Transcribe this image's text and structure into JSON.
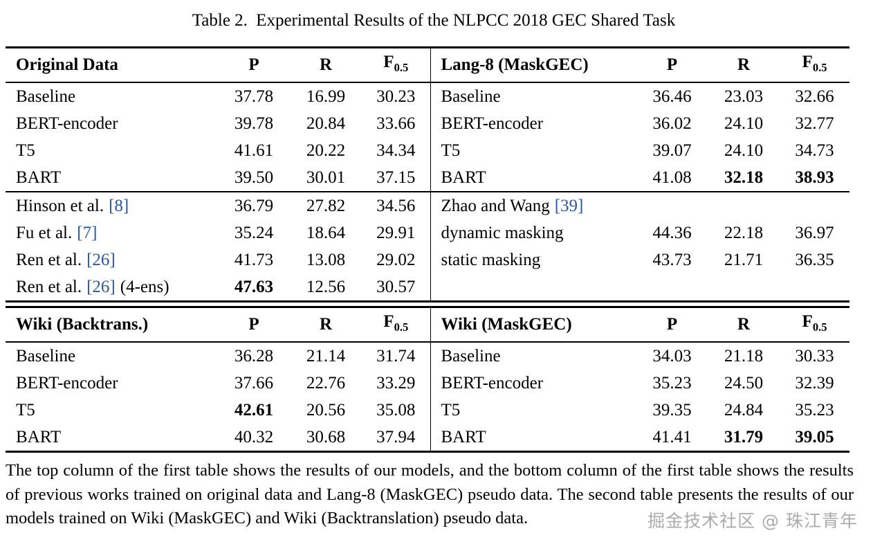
{
  "page": {
    "title_label": "Table 2.",
    "title_text": "Experimental Results of the NLPCC 2018 GEC Shared Task",
    "caption": "The top column of the first table shows the results of our models, and the bottom column of the first table shows the results of previous works trained on original data and Lang-8 (MaskGEC) pseudo data. The second table presents the results of our models trained on Wiki (MaskGEC) and Wiki (Backtranslation) pseudo data.",
    "watermark": "掘金技术社区 @ 珠江青年"
  },
  "colors": {
    "text": "#000000",
    "citation_link": "#2757a5",
    "watermark": "#8f8f8f"
  },
  "headers": {
    "precision": "P",
    "recall": "R",
    "f_base": "F",
    "f_sub": "0.5"
  },
  "table1": {
    "left": {
      "title": "Original Data",
      "groups": [
        [
          {
            "label": "Baseline",
            "p": "37.78",
            "r": "16.99",
            "f": "30.23"
          },
          {
            "label": "BERT-encoder",
            "p": "39.78",
            "r": "20.84",
            "f": "33.66"
          },
          {
            "label": "T5",
            "p": "41.61",
            "r": "20.22",
            "f": "34.34"
          },
          {
            "label": "BART",
            "p": "39.50",
            "r": "30.01",
            "f": "37.15"
          }
        ],
        [
          {
            "label": "Hinson et al.",
            "cite": "[8]",
            "p": "36.79",
            "r": "27.82",
            "f": "34.56"
          },
          {
            "label": "Fu et al.",
            "cite": "[7]",
            "p": "35.24",
            "r": "18.64",
            "f": "29.91"
          },
          {
            "label": "Ren et al.",
            "cite": "[26]",
            "p": "41.73",
            "r": "13.08",
            "f": "29.02"
          },
          {
            "label": "Ren et al.",
            "cite": "[26]",
            "suffix": "(4-ens)",
            "p": "47.63",
            "p_bold": true,
            "r": "12.56",
            "f": "30.57"
          }
        ]
      ]
    },
    "right": {
      "title": "Lang-8 (MaskGEC)",
      "groups": [
        [
          {
            "label": "Baseline",
            "p": "36.46",
            "r": "23.03",
            "f": "32.66"
          },
          {
            "label": "BERT-encoder",
            "p": "36.02",
            "r": "24.10",
            "f": "32.77"
          },
          {
            "label": "T5",
            "p": "39.07",
            "r": "24.10",
            "f": "34.73"
          },
          {
            "label": "BART",
            "p": "41.08",
            "r": "32.18",
            "r_bold": true,
            "f": "38.93",
            "f_bold": true
          }
        ],
        [
          {
            "label": "Zhao and Wang",
            "cite": "[39]",
            "p": "",
            "r": "",
            "f": ""
          },
          {
            "label": "dynamic masking",
            "p": "44.36",
            "r": "22.18",
            "f": "36.97"
          },
          {
            "label": "static masking",
            "p": "43.73",
            "r": "21.71",
            "f": "36.35"
          },
          {
            "label": "",
            "p": "",
            "r": "",
            "f": ""
          }
        ]
      ]
    }
  },
  "table2": {
    "left": {
      "title": "Wiki (Backtrans.)",
      "groups": [
        [
          {
            "label": "Baseline",
            "p": "36.28",
            "r": "21.14",
            "f": "31.74"
          },
          {
            "label": "BERT-encoder",
            "p": "37.66",
            "r": "22.76",
            "f": "33.29"
          },
          {
            "label": "T5",
            "p": "42.61",
            "p_bold": true,
            "r": "20.56",
            "f": "35.08"
          },
          {
            "label": "BART",
            "p": "40.32",
            "r": "30.68",
            "f": "37.94"
          }
        ]
      ]
    },
    "right": {
      "title": "Wiki (MaskGEC)",
      "groups": [
        [
          {
            "label": "Baseline",
            "p": "34.03",
            "r": "21.18",
            "f": "30.33"
          },
          {
            "label": "BERT-encoder",
            "p": "35.23",
            "r": "24.50",
            "f": "32.39"
          },
          {
            "label": "T5",
            "p": "39.35",
            "r": "24.84",
            "f": "35.23"
          },
          {
            "label": "BART",
            "p": "41.41",
            "r": "31.79",
            "r_bold": true,
            "f": "39.05",
            "f_bold": true
          }
        ]
      ]
    }
  }
}
